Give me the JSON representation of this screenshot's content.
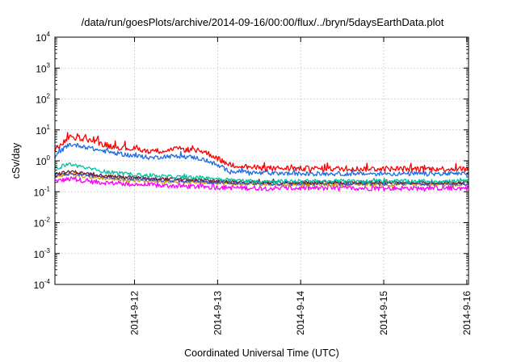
{
  "chart_data": {
    "type": "line",
    "title": "/data/run/goesPlots/archive/2014-09-16/00:00/flux/../bryn/5daysEarthData.plot",
    "xlabel": "Coordinated Universal Time (UTC)",
    "ylabel": "cSv/day",
    "y_scale": "log",
    "ylim": [
      0.0001,
      10000
    ],
    "y_ticks": [
      {
        "base": "10",
        "exp": "-4"
      },
      {
        "base": "10",
        "exp": "-3"
      },
      {
        "base": "10",
        "exp": "-2"
      },
      {
        "base": "10",
        "exp": "-1"
      },
      {
        "base": "10",
        "exp": "0"
      },
      {
        "base": "10",
        "exp": "1"
      },
      {
        "base": "10",
        "exp": "2"
      },
      {
        "base": "10",
        "exp": "3"
      },
      {
        "base": "10",
        "exp": "4"
      }
    ],
    "xlim": [
      "2014-09-11 01:00",
      "2014-09-16 00:30"
    ],
    "x_ticks": [
      "2014-9-12",
      "2014-9-13",
      "2014-9-14",
      "2014-9-15",
      "2014-9-16"
    ],
    "grid": true,
    "legend": "none",
    "series": [
      {
        "color": "#ff0000",
        "x": [
          "2014-09-11 01:00",
          "2014-09-11 05:00",
          "2014-09-11 09:00",
          "2014-09-11 13:00",
          "2014-09-11 17:00",
          "2014-09-11 21:00",
          "2014-09-12 01:00",
          "2014-09-12 05:00",
          "2014-09-12 09:00",
          "2014-09-12 13:00",
          "2014-09-12 17:00",
          "2014-09-12 20:00",
          "2014-09-12 23:00",
          "2014-09-13 03:00",
          "2014-09-13 12:00",
          "2014-09-14 00:00",
          "2014-09-14 12:00",
          "2014-09-15 00:00",
          "2014-09-15 12:00",
          "2014-09-16 00:00"
        ],
        "values": [
          2.2,
          5.5,
          5.5,
          4.0,
          3.0,
          2.6,
          2.4,
          2.0,
          2.2,
          2.4,
          2.2,
          2.0,
          1.4,
          0.75,
          0.58,
          0.56,
          0.55,
          0.55,
          0.55,
          0.55
        ]
      },
      {
        "color": "#1e6be6",
        "x": [
          "2014-09-11 01:00",
          "2014-09-11 05:00",
          "2014-09-11 09:00",
          "2014-09-11 13:00",
          "2014-09-11 17:00",
          "2014-09-11 21:00",
          "2014-09-12 01:00",
          "2014-09-12 05:00",
          "2014-09-12 09:00",
          "2014-09-12 13:00",
          "2014-09-12 17:00",
          "2014-09-12 20:00",
          "2014-09-12 23:00",
          "2014-09-13 03:00",
          "2014-09-13 12:00",
          "2014-09-14 00:00",
          "2014-09-14 12:00",
          "2014-09-15 00:00",
          "2014-09-15 12:00",
          "2014-09-16 00:00"
        ],
        "values": [
          1.4,
          3.4,
          3.0,
          2.3,
          1.9,
          1.6,
          1.4,
          1.25,
          1.4,
          1.4,
          1.3,
          1.1,
          0.8,
          0.48,
          0.4,
          0.38,
          0.38,
          0.38,
          0.38,
          0.38
        ]
      },
      {
        "color": "#00c4a0",
        "x": [
          "2014-09-11 01:00",
          "2014-09-11 05:00",
          "2014-09-11 09:00",
          "2014-09-11 13:00",
          "2014-09-11 17:00",
          "2014-09-11 21:00",
          "2014-09-12 03:00",
          "2014-09-12 12:00",
          "2014-09-12 23:00",
          "2014-09-13 06:00",
          "2014-09-13 12:00",
          "2014-09-14 00:00",
          "2014-09-15 00:00",
          "2014-09-16 00:00"
        ],
        "values": [
          0.55,
          0.8,
          0.62,
          0.5,
          0.42,
          0.38,
          0.34,
          0.3,
          0.27,
          0.23,
          0.22,
          0.22,
          0.22,
          0.22
        ]
      },
      {
        "color": "#7a1f2b",
        "x": [
          "2014-09-11 01:00",
          "2014-09-11 06:00",
          "2014-09-11 12:00",
          "2014-09-11 21:00",
          "2014-09-12 06:00",
          "2014-09-12 23:00",
          "2014-09-13 12:00",
          "2014-09-14 00:00",
          "2014-09-15 00:00",
          "2014-09-16 00:00"
        ],
        "values": [
          0.38,
          0.45,
          0.36,
          0.3,
          0.27,
          0.23,
          0.2,
          0.2,
          0.2,
          0.2
        ]
      },
      {
        "color": "#3a4fd0",
        "x": [
          "2014-09-11 01:00",
          "2014-09-11 06:00",
          "2014-09-11 12:00",
          "2014-09-11 21:00",
          "2014-09-12 06:00",
          "2014-09-12 23:00",
          "2014-09-13 12:00",
          "2014-09-14 00:00",
          "2014-09-15 00:00",
          "2014-09-16 00:00"
        ],
        "values": [
          0.33,
          0.4,
          0.32,
          0.27,
          0.24,
          0.2,
          0.18,
          0.18,
          0.18,
          0.18
        ]
      },
      {
        "color": "#c8a000",
        "x": [
          "2014-09-11 01:00",
          "2014-09-11 06:00",
          "2014-09-11 12:00",
          "2014-09-11 21:00",
          "2014-09-12 06:00",
          "2014-09-12 23:00",
          "2014-09-13 12:00",
          "2014-09-14 00:00",
          "2014-09-15 00:00",
          "2014-09-16 00:00"
        ],
        "values": [
          0.3,
          0.36,
          0.29,
          0.24,
          0.22,
          0.19,
          0.17,
          0.17,
          0.17,
          0.17
        ]
      },
      {
        "color": "#ff00ff",
        "x": [
          "2014-09-11 01:00",
          "2014-09-11 06:00",
          "2014-09-11 12:00",
          "2014-09-11 21:00",
          "2014-09-12 06:00",
          "2014-09-12 23:00",
          "2014-09-13 12:00",
          "2014-09-14 00:00",
          "2014-09-15 00:00",
          "2014-09-16 00:00"
        ],
        "values": [
          0.22,
          0.26,
          0.21,
          0.18,
          0.16,
          0.14,
          0.13,
          0.13,
          0.13,
          0.13
        ]
      }
    ]
  }
}
